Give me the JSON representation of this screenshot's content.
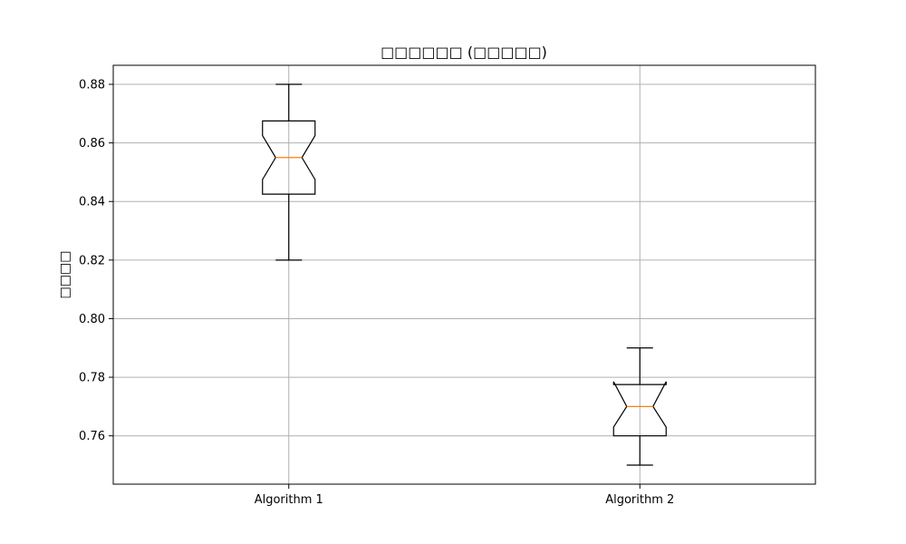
{
  "chart_data": {
    "type": "box",
    "title": "□□□□□□ (□□□□□)",
    "ylabel": "□□□□",
    "xlabel": "",
    "ylim": [
      0.7435,
      0.8865
    ],
    "yticks": [
      0.76,
      0.78,
      0.8,
      0.82,
      0.84,
      0.86,
      0.88
    ],
    "ytick_labels": [
      "0.76",
      "0.78",
      "0.80",
      "0.82",
      "0.84",
      "0.86",
      "0.88"
    ],
    "grid": true,
    "notched": true,
    "categories": [
      "Algorithm 1",
      "Algorithm 2"
    ],
    "boxes": [
      {
        "category": "Algorithm 1",
        "min": 0.82,
        "q1": 0.8425,
        "median": 0.855,
        "q3": 0.8675,
        "max": 0.88,
        "notch_low": 0.8475,
        "notch_high": 0.8625
      },
      {
        "category": "Algorithm 2",
        "min": 0.75,
        "q1": 0.76,
        "median": 0.77,
        "q3": 0.7775,
        "max": 0.79,
        "notch_low": 0.763,
        "notch_high": 0.7785
      }
    ],
    "colors": {
      "box": "#000000",
      "median": "#ff7f0e",
      "grid": "#b0b0b0",
      "axes": "#000000"
    }
  }
}
